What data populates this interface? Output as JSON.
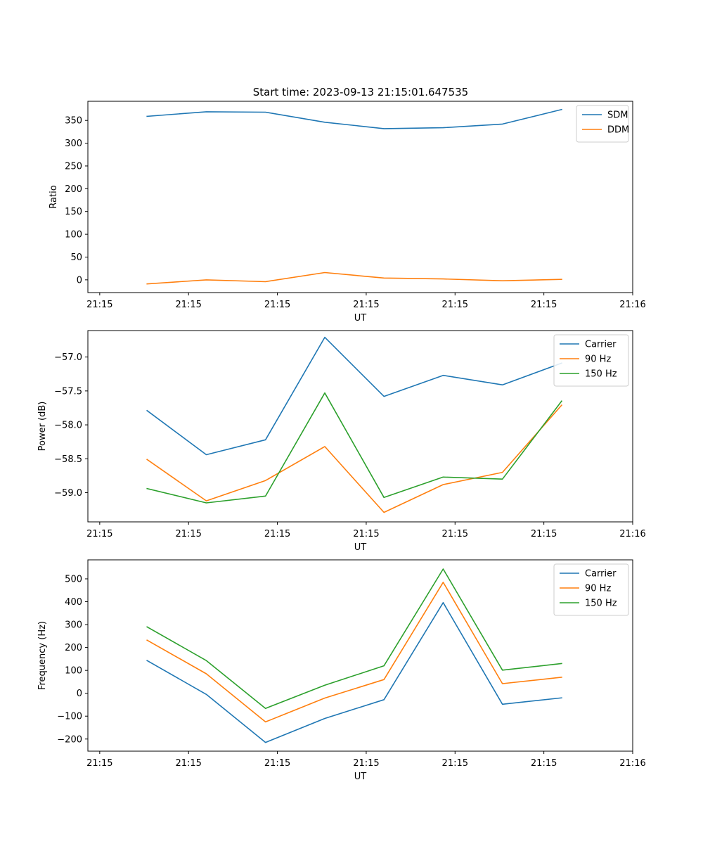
{
  "figure_title": "Start time: 2023-09-13 21:15:01.647535",
  "colors": {
    "blue": "#1f77b4",
    "orange": "#ff7f0e",
    "green": "#2ca02c"
  },
  "chart_data": [
    {
      "type": "line",
      "title": "Start time: 2023-09-13 21:15:01.647535",
      "xlabel": "UT",
      "ylabel": "Ratio",
      "x": [
        1,
        2,
        3,
        4,
        5,
        6,
        7,
        8
      ],
      "xlim": [
        0,
        9.2
      ],
      "x_ticks": [
        0.2,
        1.7,
        3.2,
        4.7,
        6.2,
        7.7,
        9.2
      ],
      "x_tick_labels": [
        "21:15",
        "21:15",
        "21:15",
        "21:15",
        "21:15",
        "21:15",
        "21:16"
      ],
      "ylim": [
        -28,
        392
      ],
      "y_ticks": [
        0,
        50,
        100,
        150,
        200,
        250,
        300,
        350
      ],
      "y_tick_labels": [
        "0",
        "50",
        "100",
        "150",
        "200",
        "250",
        "300",
        "350"
      ],
      "legend_position": "top-right",
      "series": [
        {
          "name": "SDM",
          "color": "#1f77b4",
          "values": [
            359,
            369,
            368,
            346,
            332,
            334,
            342,
            374
          ]
        },
        {
          "name": "DDM",
          "color": "#ff7f0e",
          "values": [
            -9,
            0,
            -4,
            16,
            4,
            2,
            -2,
            1
          ]
        }
      ]
    },
    {
      "type": "line",
      "title": "",
      "xlabel": "UT",
      "ylabel": "Power (dB)",
      "x": [
        1,
        2,
        3,
        4,
        5,
        6,
        7,
        8
      ],
      "xlim": [
        0,
        9.2
      ],
      "x_ticks": [
        0.2,
        1.7,
        3.2,
        4.7,
        6.2,
        7.7,
        9.2
      ],
      "x_tick_labels": [
        "21:15",
        "21:15",
        "21:15",
        "21:15",
        "21:15",
        "21:15",
        "21:16"
      ],
      "ylim": [
        -59.43,
        -56.61
      ],
      "y_ticks": [
        -59.0,
        -58.5,
        -58.0,
        -57.5,
        -57.0
      ],
      "y_tick_labels": [
        "−59.0",
        "−58.5",
        "−58.0",
        "−57.5",
        "−57.0"
      ],
      "legend_position": "top-right",
      "series": [
        {
          "name": "Carrier",
          "color": "#1f77b4",
          "values": [
            -57.79,
            -58.44,
            -58.22,
            -56.71,
            -57.58,
            -57.27,
            -57.41,
            -57.09
          ]
        },
        {
          "name": "90 Hz",
          "color": "#ff7f0e",
          "values": [
            -58.51,
            -59.12,
            -58.82,
            -58.32,
            -59.29,
            -58.88,
            -58.7,
            -57.71
          ]
        },
        {
          "name": "150 Hz",
          "color": "#2ca02c",
          "values": [
            -58.94,
            -59.15,
            -59.05,
            -57.53,
            -59.07,
            -58.77,
            -58.8,
            -57.65
          ]
        }
      ]
    },
    {
      "type": "line",
      "title": "",
      "xlabel": "UT",
      "ylabel": "Frequency (Hz)",
      "x": [
        1,
        2,
        3,
        4,
        5,
        6,
        7,
        8
      ],
      "xlim": [
        0,
        9.2
      ],
      "x_ticks": [
        0.2,
        1.7,
        3.2,
        4.7,
        6.2,
        7.7,
        9.2
      ],
      "x_tick_labels": [
        "21:15",
        "21:15",
        "21:15",
        "21:15",
        "21:15",
        "21:15",
        "21:16"
      ],
      "ylim": [
        -253,
        583
      ],
      "y_ticks": [
        -200,
        -100,
        0,
        100,
        200,
        300,
        400,
        500
      ],
      "y_tick_labels": [
        "−200",
        "−100",
        "0",
        "100",
        "200",
        "300",
        "400",
        "500"
      ],
      "legend_position": "top-right",
      "series": [
        {
          "name": "Carrier",
          "color": "#1f77b4",
          "values": [
            143,
            -5,
            -215,
            -110,
            -28,
            396,
            -48,
            -20
          ]
        },
        {
          "name": "90 Hz",
          "color": "#ff7f0e",
          "values": [
            232,
            85,
            -125,
            -21,
            60,
            485,
            42,
            70
          ]
        },
        {
          "name": "150 Hz",
          "color": "#2ca02c",
          "values": [
            290,
            143,
            -66,
            35,
            120,
            543,
            101,
            130
          ]
        }
      ]
    }
  ]
}
